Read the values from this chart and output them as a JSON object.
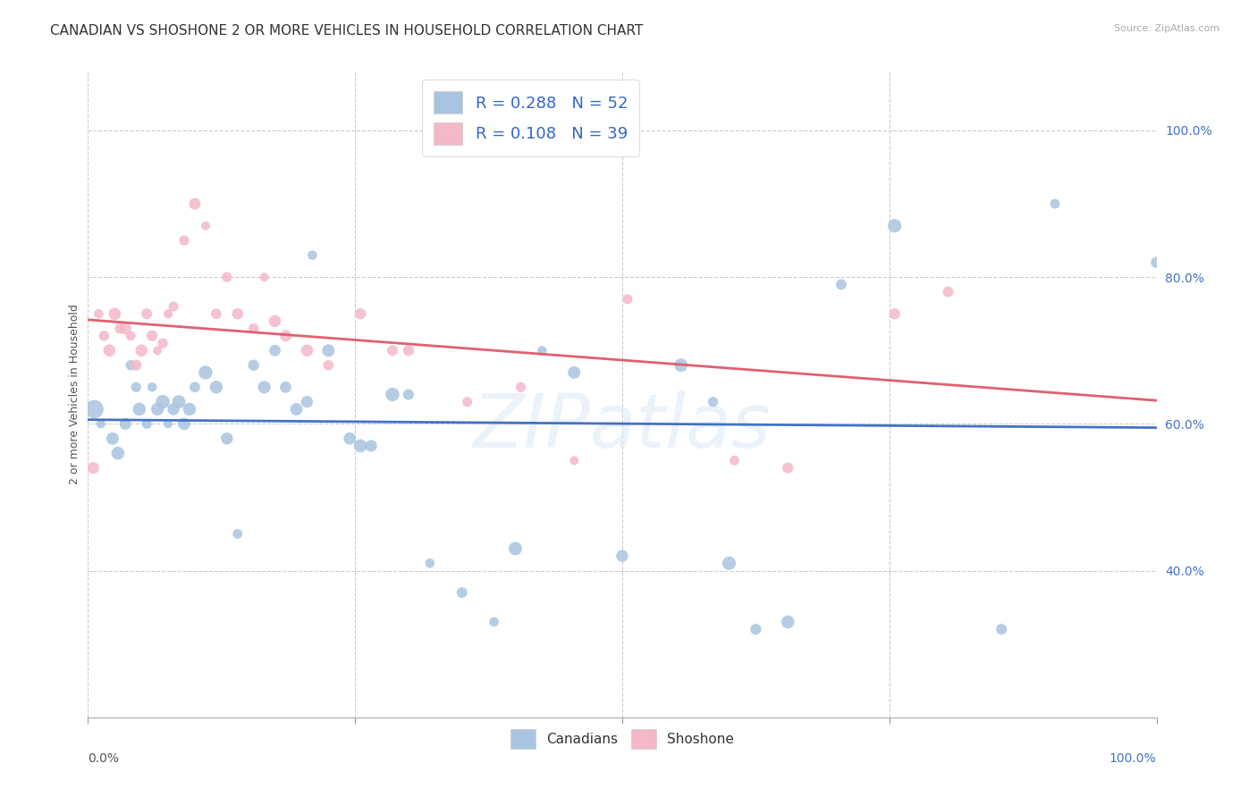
{
  "title": "CANADIAN VS SHOSHONE 2 OR MORE VEHICLES IN HOUSEHOLD CORRELATION CHART",
  "source": "Source: ZipAtlas.com",
  "ylabel": "2 or more Vehicles in Household",
  "watermark": "ZIPatlas",
  "legend": {
    "R_canadian": 0.288,
    "N_canadian": 52,
    "R_shoshone": 0.108,
    "N_shoshone": 39,
    "color_canadian": "#a8c4e0",
    "color_shoshone": "#f4b8c8",
    "text_color": "#3366cc"
  },
  "canadian_x": [
    0.006,
    0.012,
    0.023,
    0.028,
    0.035,
    0.04,
    0.045,
    0.048,
    0.055,
    0.06,
    0.065,
    0.07,
    0.075,
    0.08,
    0.085,
    0.09,
    0.095,
    0.1,
    0.11,
    0.12,
    0.13,
    0.14,
    0.155,
    0.165,
    0.175,
    0.185,
    0.195,
    0.205,
    0.225,
    0.245,
    0.255,
    0.265,
    0.285,
    0.3,
    0.32,
    0.35,
    0.38,
    0.4,
    0.425,
    0.455,
    0.5,
    0.555,
    0.585,
    0.6,
    0.625,
    0.655,
    0.705,
    0.755,
    0.855,
    0.905,
    1.0,
    0.21
  ],
  "canadian_y": [
    0.62,
    0.6,
    0.58,
    0.56,
    0.6,
    0.68,
    0.65,
    0.62,
    0.6,
    0.65,
    0.62,
    0.63,
    0.6,
    0.62,
    0.63,
    0.6,
    0.62,
    0.65,
    0.67,
    0.65,
    0.58,
    0.45,
    0.68,
    0.65,
    0.7,
    0.65,
    0.62,
    0.63,
    0.7,
    0.58,
    0.57,
    0.57,
    0.64,
    0.64,
    0.41,
    0.37,
    0.33,
    0.43,
    0.7,
    0.67,
    0.42,
    0.68,
    0.63,
    0.41,
    0.32,
    0.33,
    0.79,
    0.87,
    0.32,
    0.9,
    0.82,
    0.83
  ],
  "shoshone_x": [
    0.005,
    0.01,
    0.015,
    0.02,
    0.025,
    0.03,
    0.035,
    0.04,
    0.045,
    0.05,
    0.055,
    0.06,
    0.065,
    0.07,
    0.075,
    0.08,
    0.09,
    0.1,
    0.11,
    0.12,
    0.13,
    0.14,
    0.155,
    0.165,
    0.175,
    0.185,
    0.205,
    0.225,
    0.255,
    0.285,
    0.3,
    0.355,
    0.405,
    0.455,
    0.505,
    0.605,
    0.655,
    0.755,
    0.805
  ],
  "shoshone_y": [
    0.54,
    0.75,
    0.72,
    0.7,
    0.75,
    0.73,
    0.73,
    0.72,
    0.68,
    0.7,
    0.75,
    0.72,
    0.7,
    0.71,
    0.75,
    0.76,
    0.85,
    0.9,
    0.87,
    0.75,
    0.8,
    0.75,
    0.73,
    0.8,
    0.74,
    0.72,
    0.7,
    0.68,
    0.75,
    0.7,
    0.7,
    0.63,
    0.65,
    0.55,
    0.77,
    0.55,
    0.54,
    0.75,
    0.78
  ],
  "canadian_color_scatter": "#a8c4e0",
  "shoshone_color_scatter": "#f4b8c8",
  "canadian_line_color": "#4472c4",
  "shoshone_line_color": "#e06070",
  "xlim": [
    0.0,
    1.0
  ],
  "ylim": [
    0.2,
    1.08
  ],
  "yticks": [
    0.4,
    0.6,
    0.8,
    1.0
  ],
  "ytick_labels": [
    "40.0%",
    "60.0%",
    "80.0%",
    "100.0%"
  ],
  "grid_color": "#cccccc",
  "background_color": "#ffffff",
  "title_fontsize": 11,
  "axis_label_fontsize": 9,
  "tick_fontsize": 10,
  "legend_fontsize": 13
}
